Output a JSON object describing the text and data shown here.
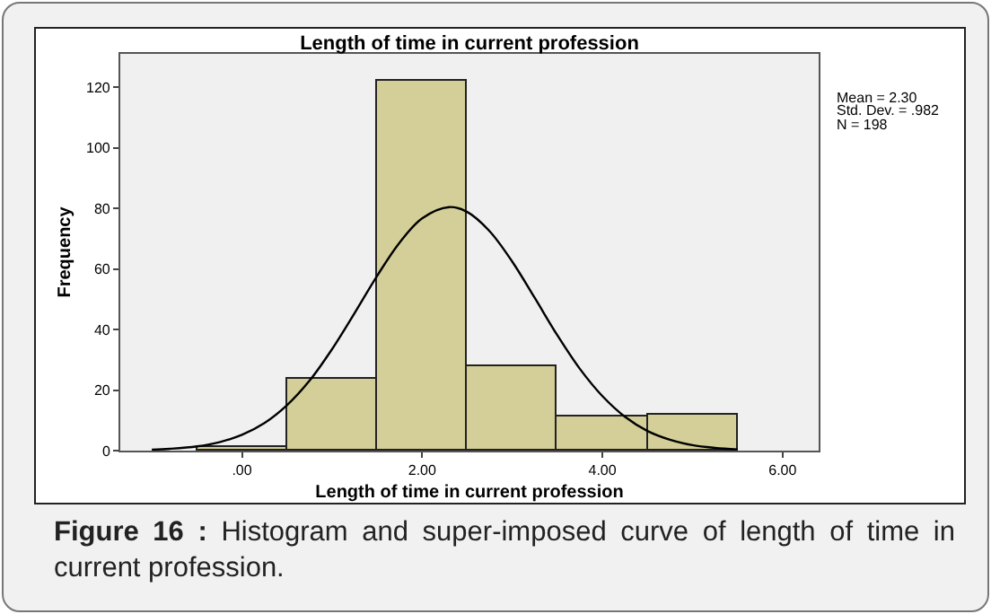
{
  "chart_data": {
    "type": "histogram",
    "title": "Length of time in current profession",
    "xlabel": "Length of time in current profession",
    "ylabel": "Frequency",
    "bins": [
      -0.5,
      0.5,
      1.5,
      2.5,
      3.5,
      4.5,
      5.5
    ],
    "values": [
      1,
      24,
      122,
      28,
      11,
      12
    ],
    "color": "#d4cf98",
    "series": [
      {
        "type": "line",
        "color": "#000000",
        "x": [
          -1.0,
          -0.8,
          -0.5,
          -0.25,
          0,
          0.25,
          0.5,
          0.75,
          1.0,
          1.25,
          1.5,
          1.75,
          2.0,
          2.3,
          2.5,
          2.75,
          3.0,
          3.25,
          3.5,
          3.75,
          4.0,
          4.25,
          4.5,
          4.75,
          5.0,
          5.25,
          5.5
        ],
        "values": [
          0.3,
          0.6,
          1.4,
          2.8,
          5.2,
          9.1,
          15.0,
          23.1,
          33.5,
          45.4,
          57.7,
          68.7,
          76.7,
          80.4,
          78.8,
          72.4,
          62.4,
          50.4,
          38.1,
          27.0,
          18.0,
          11.2,
          6.5,
          3.6,
          1.8,
          0.9,
          0.4
        ]
      }
    ],
    "xlim": [
      -1.35,
      6.4
    ],
    "xticks": [
      {
        "value": 0,
        "label": ".00"
      },
      {
        "value": 2,
        "label": "2.00"
      },
      {
        "value": 4,
        "label": "4.00"
      },
      {
        "value": 6,
        "label": "6.00"
      }
    ],
    "ylim": [
      0,
      131
    ],
    "yticks": [
      0,
      20,
      40,
      60,
      80,
      100,
      120
    ],
    "grid": false,
    "annotations": [
      "Mean = 2.30",
      "Std. Dev. = .982",
      "N = 198",
      "Figure 16 : Histogram and super-imposed curve of length of time in current profession."
    ]
  }
}
